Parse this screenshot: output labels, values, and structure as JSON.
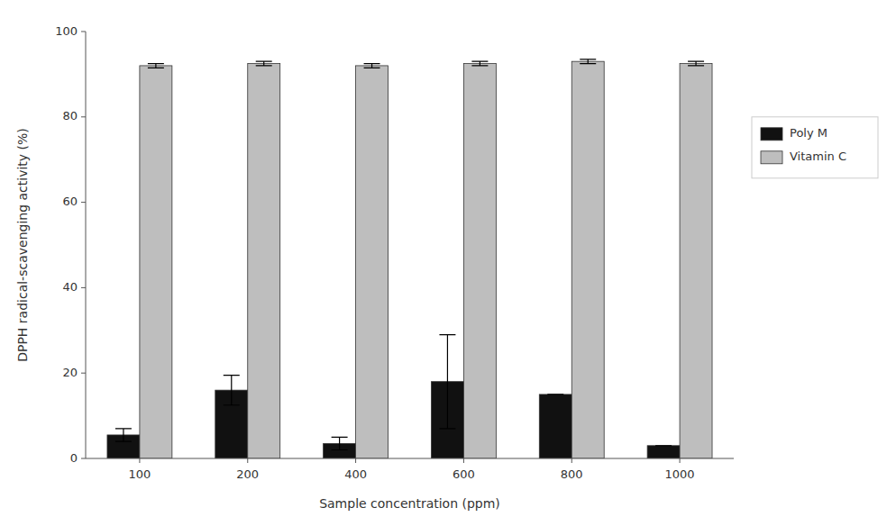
{
  "chart_data": {
    "type": "bar",
    "xlabel": "Sample concentration (ppm)",
    "ylabel": "DPPH radical-scavenging activity (%)",
    "categories": [
      100,
      200,
      400,
      600,
      800,
      1000
    ],
    "series": [
      {
        "name": "Poly M",
        "color": "#111111",
        "values": [
          5.5,
          16.0,
          3.5,
          18.0,
          15.0,
          3.0
        ],
        "errors": [
          1.5,
          3.5,
          1.5,
          11.0,
          0.0,
          0.0
        ]
      },
      {
        "name": "Vitamin C",
        "color": "#bebebe",
        "values": [
          92.0,
          92.5,
          92.0,
          92.5,
          93.0,
          92.5
        ],
        "errors": [
          0.5,
          0.5,
          0.5,
          0.5,
          0.5,
          0.5
        ]
      }
    ],
    "ylim": [
      0,
      100
    ],
    "yticks": [
      0,
      20,
      40,
      60,
      80,
      100
    ],
    "grid": false,
    "legend": "right"
  }
}
